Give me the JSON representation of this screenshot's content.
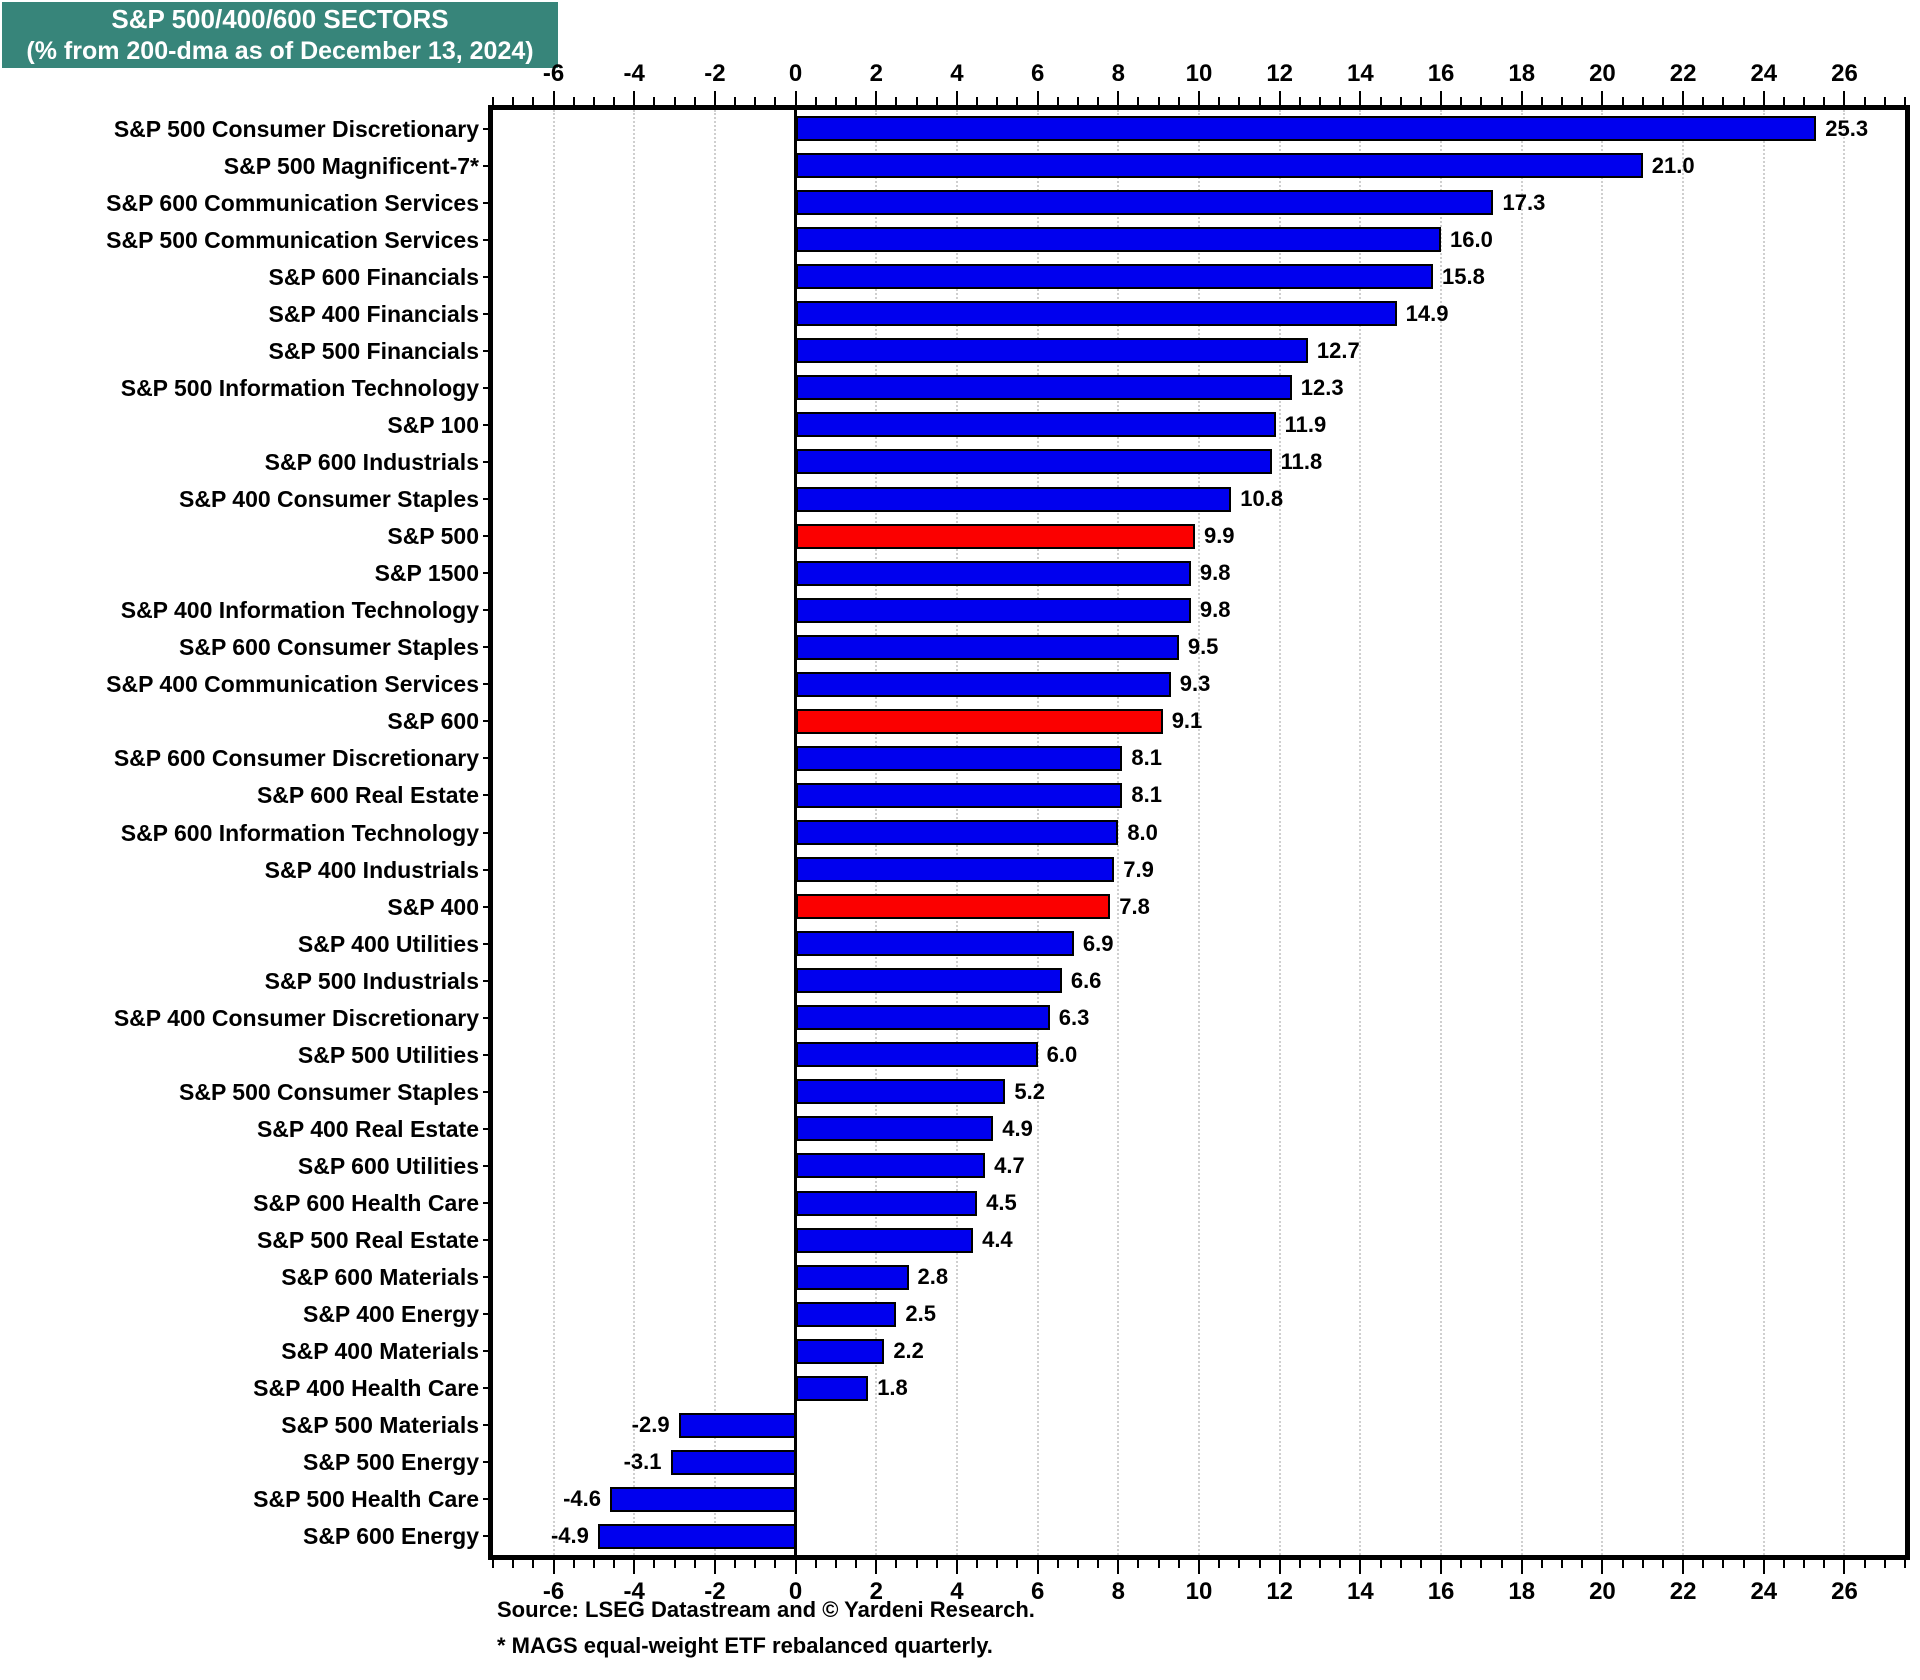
{
  "title": {
    "line1": "S&P 500/400/600 SECTORS",
    "line2": "(% from 200-dma as of December 13, 2024)"
  },
  "footer": {
    "source": "Source: LSEG Datastream and © Yardeni Research.",
    "note": "* MAGS equal-weight ETF rebalanced quarterly."
  },
  "colors": {
    "blue": "#0000EE",
    "red": "#FB0000",
    "title_bg": "#37857A",
    "grid": "#CFCFCF",
    "axis": "#000000"
  },
  "chart_data": {
    "type": "bar",
    "orientation": "horizontal",
    "title": "S&P 500/400/600 SECTORS",
    "subtitle": "(% from 200-dma as of December 13, 2024)",
    "xlabel": "",
    "ylabel": "",
    "xlim": [
      -7.5,
      27.5
    ],
    "x_major_tick_step": 2,
    "x_minor_tick_step": 0.5,
    "x_tick_labels": [
      "-6",
      "-4",
      "-2",
      "0",
      "2",
      "4",
      "6",
      "8",
      "10",
      "12",
      "14",
      "16",
      "18",
      "20",
      "22",
      "24",
      "26"
    ],
    "grid": true,
    "legend": "none",
    "bars": [
      {
        "label": "S&P 500 Consumer Discretionary",
        "value": 25.3,
        "color": "blue"
      },
      {
        "label": "S&P 500 Magnificent-7*",
        "value": 21.0,
        "color": "blue"
      },
      {
        "label": "S&P 600 Communication Services",
        "value": 17.3,
        "color": "blue"
      },
      {
        "label": "S&P 500 Communication Services",
        "value": 16.0,
        "color": "blue"
      },
      {
        "label": "S&P 600 Financials",
        "value": 15.8,
        "color": "blue"
      },
      {
        "label": "S&P 400 Financials",
        "value": 14.9,
        "color": "blue"
      },
      {
        "label": "S&P 500 Financials",
        "value": 12.7,
        "color": "blue"
      },
      {
        "label": "S&P 500 Information Technology",
        "value": 12.3,
        "color": "blue"
      },
      {
        "label": "S&P 100",
        "value": 11.9,
        "color": "blue"
      },
      {
        "label": "S&P 600 Industrials",
        "value": 11.8,
        "color": "blue"
      },
      {
        "label": "S&P 400 Consumer Staples",
        "value": 10.8,
        "color": "blue"
      },
      {
        "label": "S&P 500",
        "value": 9.9,
        "color": "red"
      },
      {
        "label": "S&P 1500",
        "value": 9.8,
        "color": "blue"
      },
      {
        "label": "S&P 400 Information Technology",
        "value": 9.8,
        "color": "blue"
      },
      {
        "label": "S&P 600 Consumer Staples",
        "value": 9.5,
        "color": "blue"
      },
      {
        "label": "S&P 400 Communication Services",
        "value": 9.3,
        "color": "blue"
      },
      {
        "label": "S&P 600",
        "value": 9.1,
        "color": "red"
      },
      {
        "label": "S&P 600 Consumer Discretionary",
        "value": 8.1,
        "color": "blue"
      },
      {
        "label": "S&P 600 Real Estate",
        "value": 8.1,
        "color": "blue"
      },
      {
        "label": "S&P 600 Information Technology",
        "value": 8.0,
        "color": "blue"
      },
      {
        "label": "S&P 400 Industrials",
        "value": 7.9,
        "color": "blue"
      },
      {
        "label": "S&P 400",
        "value": 7.8,
        "color": "red"
      },
      {
        "label": "S&P 400 Utilities",
        "value": 6.9,
        "color": "blue"
      },
      {
        "label": "S&P 500 Industrials",
        "value": 6.6,
        "color": "blue"
      },
      {
        "label": "S&P 400 Consumer Discretionary",
        "value": 6.3,
        "color": "blue"
      },
      {
        "label": "S&P 500 Utilities",
        "value": 6.0,
        "color": "blue"
      },
      {
        "label": "S&P 500 Consumer Staples",
        "value": 5.2,
        "color": "blue"
      },
      {
        "label": "S&P 400 Real Estate",
        "value": 4.9,
        "color": "blue"
      },
      {
        "label": "S&P 600 Utilities",
        "value": 4.7,
        "color": "blue"
      },
      {
        "label": "S&P 600 Health Care",
        "value": 4.5,
        "color": "blue"
      },
      {
        "label": "S&P 500 Real Estate",
        "value": 4.4,
        "color": "blue"
      },
      {
        "label": "S&P 600 Materials",
        "value": 2.8,
        "color": "blue"
      },
      {
        "label": "S&P 400 Energy",
        "value": 2.5,
        "color": "blue"
      },
      {
        "label": "S&P 400 Materials",
        "value": 2.2,
        "color": "blue"
      },
      {
        "label": "S&P 400 Health Care",
        "value": 1.8,
        "color": "blue"
      },
      {
        "label": "S&P 500 Materials",
        "value": -2.9,
        "color": "blue"
      },
      {
        "label": "S&P 500 Energy",
        "value": -3.1,
        "color": "blue"
      },
      {
        "label": "S&P 500 Health Care",
        "value": -4.6,
        "color": "blue"
      },
      {
        "label": "S&P 600 Energy",
        "value": -4.9,
        "color": "blue"
      }
    ]
  }
}
